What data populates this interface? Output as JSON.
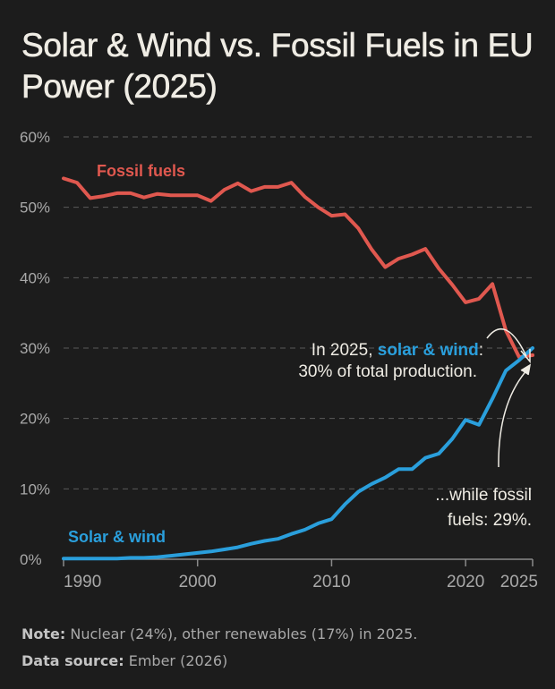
{
  "chart_data": {
    "type": "line",
    "title": "Solar & Wind vs. Fossil Fuels in EU Power (2025)",
    "x": [
      1990,
      1991,
      1992,
      1993,
      1994,
      1995,
      1996,
      1997,
      1998,
      1999,
      2000,
      2001,
      2002,
      2003,
      2004,
      2005,
      2006,
      2007,
      2008,
      2009,
      2010,
      2011,
      2012,
      2013,
      2014,
      2015,
      2016,
      2017,
      2018,
      2019,
      2020,
      2021,
      2022,
      2023,
      2024,
      2025
    ],
    "series": [
      {
        "name": "Fossil fuels",
        "color": "#e0584f",
        "values": [
          54.1,
          53.5,
          51.3,
          51.6,
          52.0,
          52.0,
          51.4,
          51.9,
          51.7,
          51.7,
          51.7,
          50.9,
          52.5,
          53.4,
          52.3,
          52.9,
          52.9,
          53.5,
          51.5,
          50.0,
          48.8,
          49.0,
          47.0,
          44.0,
          41.5,
          42.7,
          43.3,
          44.1,
          41.3,
          39.0,
          36.5,
          37.0,
          39.1,
          32.5,
          28.7,
          29.0
        ]
      },
      {
        "name": "Solar & wind",
        "color": "#2a9fdc",
        "values": [
          0.1,
          0.1,
          0.1,
          0.1,
          0.1,
          0.2,
          0.2,
          0.3,
          0.5,
          0.7,
          0.9,
          1.1,
          1.4,
          1.7,
          2.2,
          2.6,
          2.9,
          3.6,
          4.2,
          5.1,
          5.7,
          7.8,
          9.6,
          10.7,
          11.6,
          12.8,
          12.8,
          14.4,
          15.0,
          17.1,
          19.8,
          19.1,
          22.8,
          26.8,
          28.3,
          30.0
        ]
      }
    ],
    "xlim": [
      1990,
      2025
    ],
    "ylim": [
      0,
      60
    ],
    "x_ticks": [
      "1990",
      "2000",
      "2010",
      "2020",
      "2025"
    ],
    "y_ticks": [
      "0%",
      "10%",
      "20%",
      "30%",
      "40%",
      "50%",
      "60%"
    ],
    "grid": "horizontal dashed",
    "annotations": {
      "solar_line1_prefix": "In 2025, ",
      "solar_line1_highlight": "solar & wind",
      "solar_line1_suffix": ":",
      "solar_line2": "30% of total production.",
      "fossil_line1": "...while fossil",
      "fossil_line2": "fuels: 29%."
    }
  },
  "notes": {
    "note_label": "Note:",
    "note_text": " Nuclear (24%), other renewables (17%) in 2025.",
    "source_label": "Data source:",
    "source_text": " Ember (2026)"
  },
  "colors": {
    "background": "#1c1c1c",
    "text": "#efece4",
    "axis": "#a9a9a9"
  }
}
